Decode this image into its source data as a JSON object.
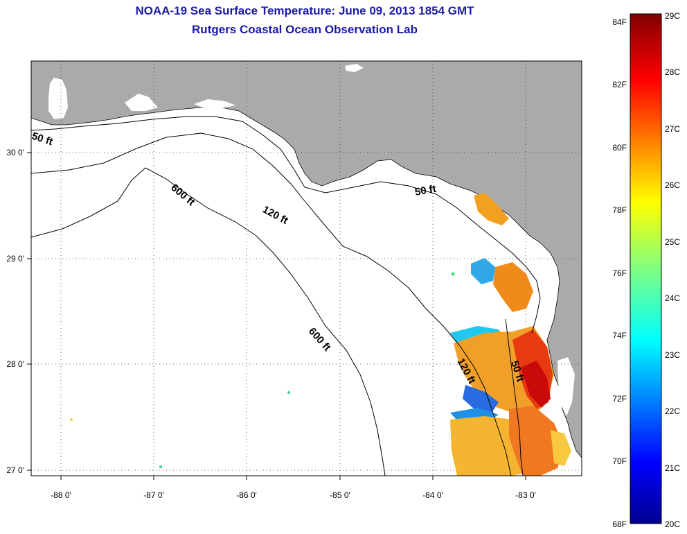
{
  "title": "NOAA-19 Sea Surface Temperature:  June 09, 2013 1854 GMT",
  "subtitle": "Rutgers Coastal Ocean Observation Lab",
  "map": {
    "lon_ticks": [
      "-88 0'",
      "-87 0'",
      "-86 0'",
      "-85 0'",
      "-84 0'",
      "-83 0'"
    ],
    "lat_ticks": [
      "30 0'",
      "29 0'",
      "28 0'",
      "27 0'"
    ],
    "contours": [
      {
        "label": "50 ft",
        "depth_ft": 50
      },
      {
        "label": "50 ft",
        "depth_ft": 50
      },
      {
        "label": "50 ft",
        "depth_ft": 50
      },
      {
        "label": "120 ft",
        "depth_ft": 120
      },
      {
        "label": "120 ft",
        "depth_ft": 120
      },
      {
        "label": "600 ft",
        "depth_ft": 600
      },
      {
        "label": "600 ft",
        "depth_ft": 600
      }
    ],
    "colors": {
      "land": "#aaaaaa",
      "ocean": "#ffffff",
      "title": "#1a1aa6"
    }
  },
  "colorbar": {
    "fahrenheit": [
      "84F",
      "82F",
      "80F",
      "78F",
      "76F",
      "74F",
      "72F",
      "70F",
      "68F"
    ],
    "celsius": [
      "29C",
      "28C",
      "27C",
      "26C",
      "25C",
      "24C",
      "23C",
      "22C",
      "21C",
      "20C"
    ],
    "range_c": [
      20,
      29
    ],
    "range_f": [
      68,
      84
    ]
  }
}
